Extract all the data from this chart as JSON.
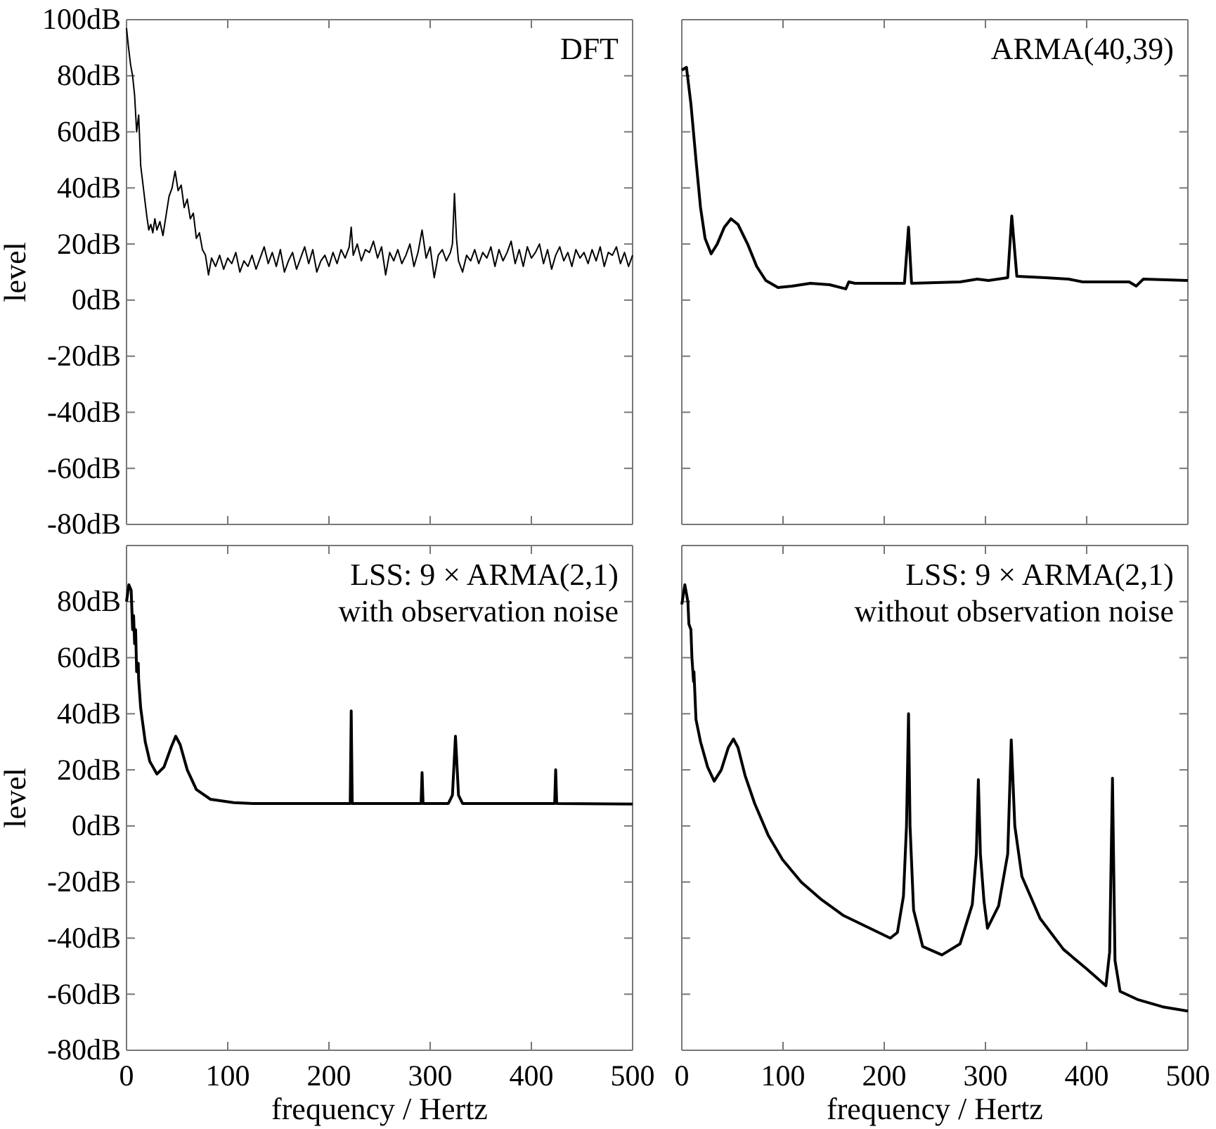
{
  "chart_data": [
    {
      "type": "line",
      "title": "DFT",
      "ylabel": "level",
      "xlim": [
        0,
        500
      ],
      "xticks": [
        0,
        100,
        200,
        300,
        400,
        500
      ],
      "ylim": [
        -80,
        100
      ],
      "yticks": [
        {
          "value": -80,
          "label": "-80dB"
        },
        {
          "value": -60,
          "label": "-60dB"
        },
        {
          "value": -40,
          "label": "-40dB"
        },
        {
          "value": -20,
          "label": "-20dB"
        },
        {
          "value": 0,
          "label": "0dB"
        },
        {
          "value": 20,
          "label": "20dB"
        },
        {
          "value": 40,
          "label": "40dB"
        },
        {
          "value": 60,
          "label": "60dB"
        },
        {
          "value": 80,
          "label": "80dB"
        },
        {
          "value": 100,
          "label": "100dB"
        }
      ],
      "tick_labels": "y",
      "grid": false,
      "series": [
        {
          "color": "#000000",
          "x": [
            0,
            2,
            4,
            6,
            8,
            10,
            12,
            14,
            16,
            18,
            20,
            22,
            24,
            26,
            28,
            30,
            33,
            36,
            39,
            42,
            45,
            48,
            51,
            54,
            57,
            60,
            63,
            66,
            69,
            72,
            75,
            78,
            81,
            84,
            88,
            92,
            96,
            100,
            104,
            108,
            112,
            116,
            120,
            124,
            128,
            132,
            136,
            140,
            144,
            148,
            152,
            156,
            160,
            164,
            168,
            172,
            176,
            180,
            184,
            188,
            192,
            196,
            200,
            204,
            208,
            212,
            216,
            220,
            222,
            224,
            228,
            232,
            236,
            240,
            244,
            248,
            252,
            256,
            260,
            264,
            268,
            272,
            276,
            280,
            284,
            288,
            292,
            296,
            300,
            304,
            308,
            312,
            316,
            320,
            322,
            324,
            326,
            328,
            332,
            336,
            340,
            344,
            348,
            352,
            356,
            360,
            364,
            368,
            372,
            376,
            380,
            384,
            388,
            392,
            396,
            400,
            404,
            408,
            412,
            416,
            420,
            424,
            428,
            432,
            436,
            440,
            444,
            448,
            452,
            456,
            460,
            464,
            468,
            472,
            476,
            480,
            484,
            488,
            492,
            496,
            500
          ],
          "values": [
            97,
            90,
            84,
            80,
            73,
            60,
            66,
            48,
            42,
            36,
            30,
            25,
            27,
            24,
            29,
            25,
            28,
            23,
            30,
            37,
            40,
            46,
            39,
            41,
            33,
            36,
            29,
            31,
            22,
            24,
            18,
            16,
            9,
            15,
            12,
            16,
            11,
            15,
            13,
            17,
            10,
            14,
            12,
            16,
            11,
            15,
            19,
            13,
            17,
            12,
            18,
            10,
            14,
            17,
            11,
            15,
            19,
            13,
            18,
            10,
            14,
            16,
            12,
            17,
            13,
            18,
            15,
            19,
            26,
            16,
            20,
            14,
            18,
            17,
            21,
            15,
            19,
            9,
            17,
            14,
            18,
            13,
            16,
            20,
            12,
            17,
            25,
            15,
            19,
            8,
            16,
            18,
            14,
            17,
            20,
            38,
            22,
            14,
            10,
            16,
            14,
            18,
            13,
            17,
            15,
            19,
            12,
            18,
            14,
            17,
            21,
            13,
            18,
            12,
            19,
            15,
            17,
            20,
            13,
            18,
            11,
            16,
            19,
            14,
            17,
            12,
            18,
            15,
            17,
            13,
            18,
            14,
            19,
            12,
            17,
            16,
            19,
            13,
            17,
            12,
            16
          ]
        }
      ]
    },
    {
      "type": "line",
      "title": "ARMA(40,39)",
      "xlim": [
        0,
        500
      ],
      "xticks": [
        0,
        100,
        200,
        300,
        400,
        500
      ],
      "ylim": [
        -80,
        100
      ],
      "yticks": [
        -80,
        -60,
        -40,
        -20,
        0,
        20,
        40,
        60,
        80,
        100
      ],
      "tick_labels": false,
      "grid": false,
      "series": [
        {
          "color": "#000000",
          "x": [
            0,
            4.6,
            9,
            14,
            18.5,
            23,
            29,
            35,
            42,
            48.6,
            55.5,
            65,
            74,
            83,
            95,
            109,
            127,
            146,
            162,
            165,
            171,
            220,
            224,
            227,
            275,
            292,
            303,
            322,
            326,
            331,
            359,
            382,
            396,
            442,
            449,
            456,
            500
          ],
          "values": [
            82,
            83,
            70,
            50,
            33,
            22,
            16.5,
            20,
            26,
            29,
            27,
            20,
            12,
            7,
            4.5,
            5,
            6,
            5.5,
            4,
            6.5,
            6,
            6,
            26,
            6,
            6.5,
            7.5,
            7,
            8,
            30,
            8.5,
            8,
            7.5,
            6.5,
            6.5,
            5,
            7.5,
            7
          ]
        }
      ]
    },
    {
      "type": "line",
      "title": "LSS: 9 × ARMA(2,1)",
      "subtitle": "with observation noise",
      "xlabel": "frequency / Hertz",
      "ylabel": "level",
      "xlim": [
        0,
        500
      ],
      "xticks": [
        0,
        100,
        200,
        300,
        400,
        500
      ],
      "ylim": [
        -80,
        100
      ],
      "yticks": [
        {
          "value": -80,
          "label": "-80dB"
        },
        {
          "value": -60,
          "label": "-60dB"
        },
        {
          "value": -40,
          "label": "-40dB"
        },
        {
          "value": -20,
          "label": "-20dB"
        },
        {
          "value": 0,
          "label": "0dB"
        },
        {
          "value": 20,
          "label": "20dB"
        },
        {
          "value": 40,
          "label": "40dB"
        },
        {
          "value": 60,
          "label": "60dB"
        },
        {
          "value": 80,
          "label": "80dB"
        },
        {
          "value": 100,
          "label": null
        }
      ],
      "grid": false,
      "series": [
        {
          "color": "#000000",
          "x": [
            0,
            2.3,
            4.6,
            6,
            7,
            8,
            9,
            10,
            11.6,
            12,
            14,
            18.5,
            23,
            30,
            37,
            44,
            48.6,
            53,
            60,
            69,
            83,
            106,
            125,
            221,
            222,
            223,
            291,
            292,
            293,
            318,
            322,
            325,
            328,
            332,
            423,
            424,
            425,
            500
          ],
          "values": [
            80,
            86,
            84,
            70,
            75,
            65,
            70,
            55,
            58,
            52,
            42,
            30,
            23,
            18.5,
            21,
            28,
            32,
            29,
            20,
            13,
            9.5,
            8.3,
            8,
            8,
            41,
            8,
            8,
            19,
            8,
            8,
            11,
            32,
            11,
            8,
            8,
            20,
            8,
            7.8
          ]
        }
      ]
    },
    {
      "type": "line",
      "title": "LSS: 9 × ARMA(2,1)",
      "subtitle": "without observation noise",
      "xlabel": "frequency / Hertz",
      "xlim": [
        0,
        500
      ],
      "xticks": [
        0,
        100,
        200,
        300,
        400,
        500
      ],
      "ylim": [
        -80,
        100
      ],
      "yticks": [
        -80,
        -60,
        -40,
        -20,
        0,
        20,
        40,
        60,
        80,
        100
      ],
      "tick_labels": "x",
      "grid": false,
      "series": [
        {
          "color": "#000000",
          "x": [
            0,
            3,
            6,
            7,
            9,
            10,
            11.6,
            12,
            14,
            18.5,
            25.5,
            32,
            39,
            46,
            51,
            55.5,
            62.5,
            72,
            85.6,
            99.5,
            118,
            137,
            160,
            183,
            206,
            213,
            219,
            222,
            224,
            225.5,
            229,
            238,
            257,
            275,
            287,
            291,
            293,
            295,
            298.6,
            302,
            313,
            322,
            325.5,
            329,
            336,
            354,
            377,
            400,
            419,
            422.7,
            425.5,
            428,
            433,
            451,
            475,
            500
          ],
          "values": [
            79,
            86,
            80,
            72,
            70,
            60,
            51.5,
            55,
            38,
            30,
            21,
            16,
            20,
            28,
            31,
            28,
            18,
            8,
            -3.5,
            -12,
            -20,
            -26,
            -32,
            -36,
            -40,
            -38,
            -25,
            0,
            40,
            0,
            -30,
            -43,
            -46,
            -42,
            -28,
            -10,
            16.5,
            -10,
            -27,
            -36.5,
            -28.5,
            -10,
            30.7,
            0,
            -18,
            -33,
            -44,
            -51,
            -57,
            -45,
            17,
            -48,
            -59,
            -62,
            -64.5,
            -66
          ]
        }
      ]
    }
  ]
}
